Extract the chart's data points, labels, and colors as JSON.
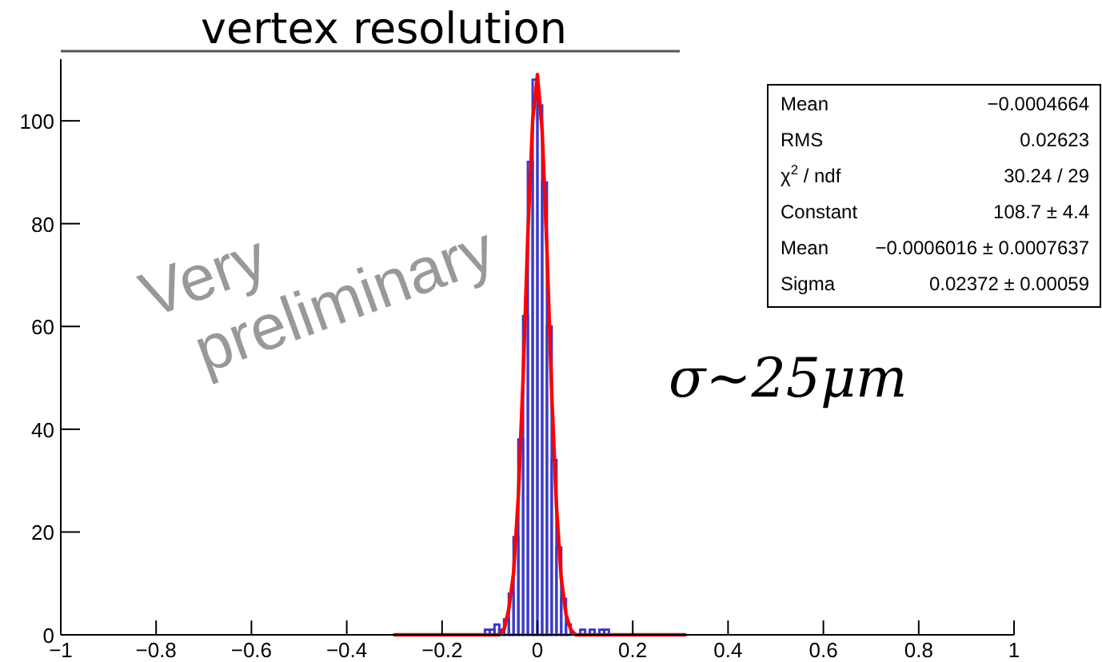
{
  "chart_data": {
    "type": "histogram",
    "title": "vertex resolution",
    "bins": [
      -0.11,
      -0.1,
      -0.09,
      -0.08,
      -0.07,
      -0.06,
      -0.05,
      -0.04,
      -0.03,
      -0.02,
      -0.01,
      0,
      0.01,
      0.02,
      0.03,
      0.04,
      0.05,
      0.06,
      0.07,
      0.08,
      0.09,
      0.1,
      0.11,
      0.12,
      0.13,
      0.14,
      0.15
    ],
    "values": [
      1,
      1,
      2,
      1,
      3,
      8,
      19,
      38,
      62,
      92,
      108,
      103,
      88,
      60,
      34,
      17,
      7,
      2,
      0,
      0,
      1,
      0,
      1,
      0,
      1,
      1
    ],
    "color": "#3a3ac8",
    "series": [
      {
        "type": "line",
        "color": "#ff0000",
        "x": [
          -0.3,
          -0.1,
          -0.08,
          -0.07,
          -0.06,
          -0.05,
          -0.04,
          -0.03,
          -0.02,
          -0.01,
          0,
          0.01,
          0.02,
          0.03,
          0.04,
          0.05,
          0.06,
          0.07,
          0.08,
          0.1,
          0.31
        ],
        "values": [
          0,
          0,
          0,
          1,
          5,
          12,
          27,
          50,
          78,
          100,
          109,
          98,
          75,
          47,
          25,
          11,
          4,
          1,
          0,
          0,
          0
        ]
      }
    ],
    "xlim": [
      -1,
      1
    ],
    "ylim": [
      0,
      112
    ],
    "xticks": [
      {
        "value": -1,
        "label": "−1"
      },
      {
        "value": -0.8,
        "label": "−0.8"
      },
      {
        "value": -0.6,
        "label": "−0.6"
      },
      {
        "value": -0.4,
        "label": "−0.4"
      },
      {
        "value": -0.2,
        "label": "−0.2"
      },
      0,
      0.2,
      0.4,
      0.6,
      0.8,
      1
    ],
    "yticks": [
      0,
      20,
      40,
      60,
      80,
      100
    ],
    "grid": false,
    "annotations": [
      "Mean",
      "−0.0004664",
      "RMS",
      "0.02623",
      "χ$^{2}$ / ndf",
      "30.24 / 29",
      "Constant",
      "108.7 ± 4.4",
      "Mean",
      "−0.0006016 ± 0.0007637",
      "Sigma",
      "0.02372 ± 0.00059",
      "Very",
      "preliminary",
      "σ~25μm"
    ]
  }
}
